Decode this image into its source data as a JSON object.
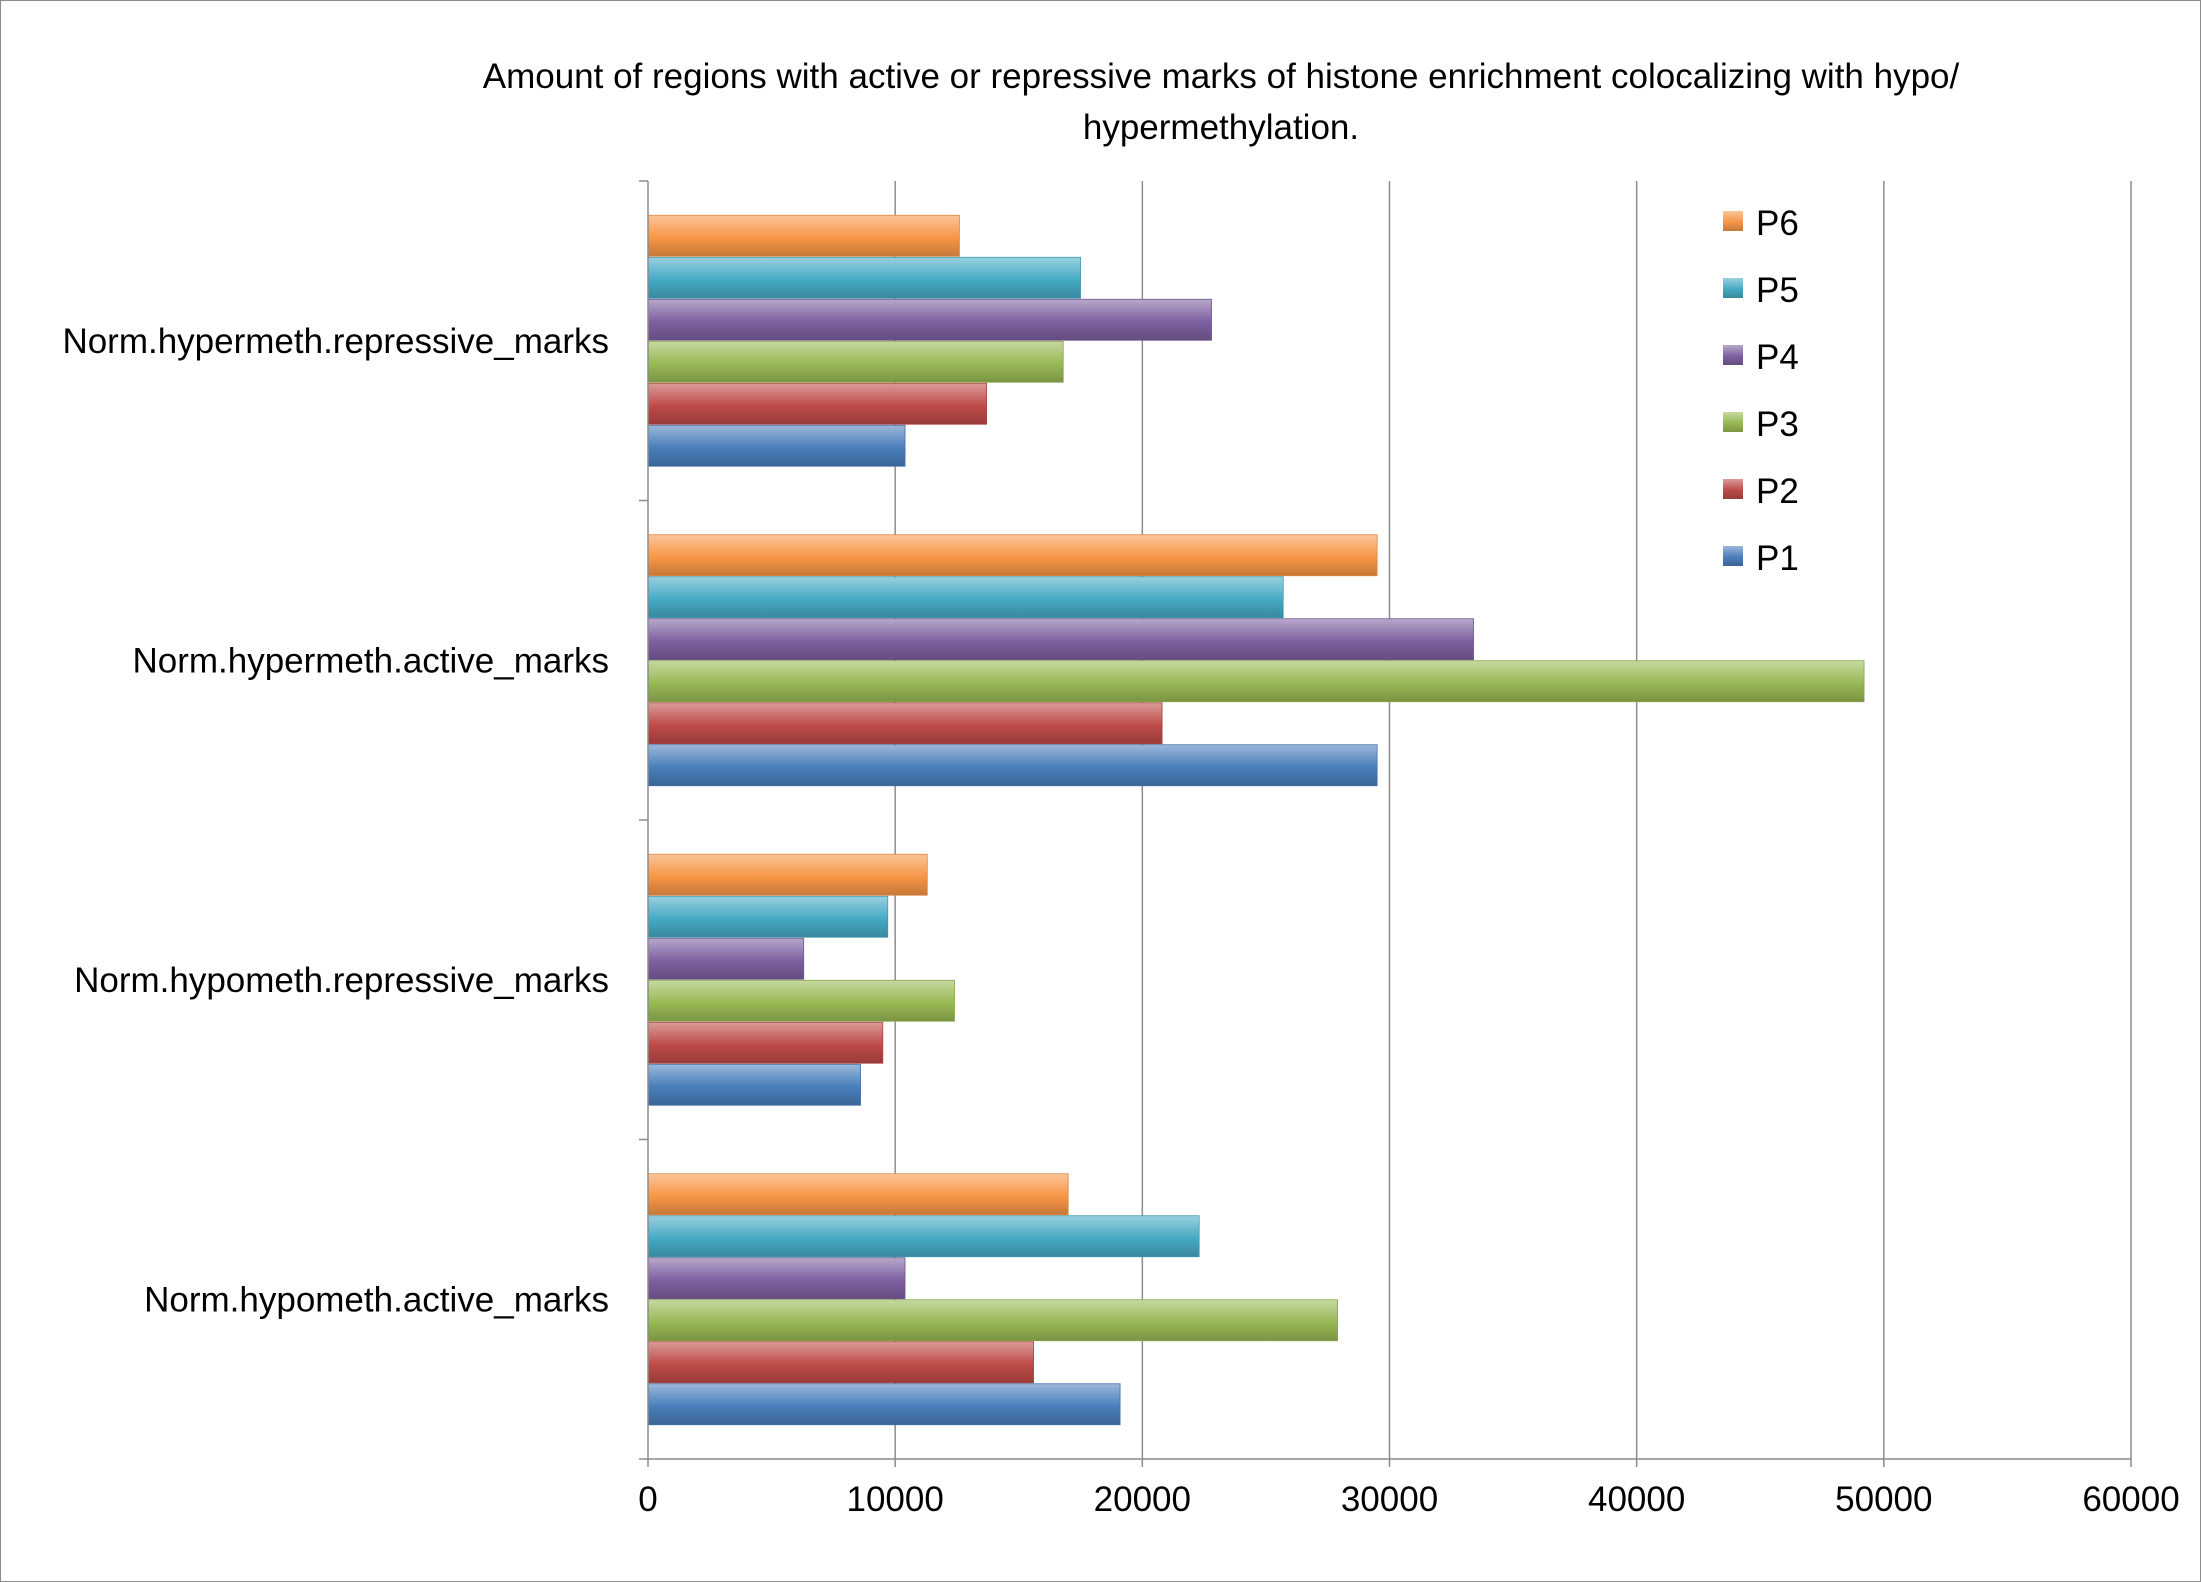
{
  "chart_data": {
    "type": "bar",
    "orientation": "horizontal",
    "title": "Amount of regions with active or repressive marks of histone enrichment colocalizing with hypo/\nhypermethylation.",
    "categories": [
      "Norm.hypometh.active_marks",
      "Norm.hypometh.repressive_marks",
      "Norm.hypermeth.active_marks",
      "Norm.hypermeth.repressive_marks"
    ],
    "series": [
      {
        "name": "P1",
        "color": "#4a7ebb",
        "values": [
          19100,
          8600,
          29500,
          10400
        ]
      },
      {
        "name": "P2",
        "color": "#be4b48",
        "values": [
          15600,
          9500,
          20800,
          13700
        ]
      },
      {
        "name": "P3",
        "color": "#98b954",
        "values": [
          27900,
          12400,
          49200,
          16800
        ]
      },
      {
        "name": "P4",
        "color": "#7d60a0",
        "values": [
          10400,
          6300,
          33400,
          22800
        ]
      },
      {
        "name": "P5",
        "color": "#46aac4",
        "values": [
          22300,
          9700,
          25700,
          17500
        ]
      },
      {
        "name": "P6",
        "color": "#f79646",
        "values": [
          17000,
          11300,
          29500,
          12600
        ]
      }
    ],
    "xlim": [
      0,
      60000
    ],
    "xticks": [
      "0",
      "10000",
      "20000",
      "30000",
      "40000",
      "50000",
      "60000"
    ],
    "grid": true,
    "legend_position": "top-right"
  }
}
